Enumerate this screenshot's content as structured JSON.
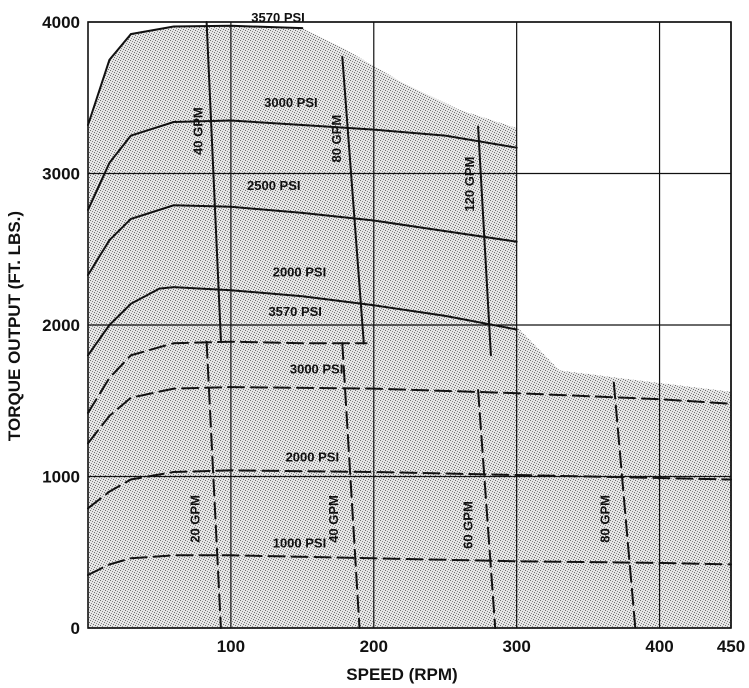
{
  "chart_data": {
    "type": "line",
    "title": "",
    "xlabel": "SPEED (RPM)",
    "ylabel": "TORQUE OUTPUT (FT. LBS.)",
    "xlim": [
      0,
      450
    ],
    "ylim": [
      0,
      4000
    ],
    "x_ticks": [
      "100",
      "200",
      "300",
      "400",
      "450"
    ],
    "y_ticks": [
      "0",
      "1000",
      "2000",
      "3000",
      "4000"
    ],
    "grid": true,
    "colors": {
      "line": "#111111",
      "fill": "#c9c9c9",
      "grid": "#111111"
    },
    "solid_series": [
      {
        "name": "3570 PSI",
        "label_pos": [
          133,
          4000
        ],
        "points": [
          [
            0,
            3320
          ],
          [
            15,
            3750
          ],
          [
            30,
            3920
          ],
          [
            60,
            3970
          ],
          [
            100,
            3975
          ],
          [
            150,
            3960
          ]
        ]
      },
      {
        "name": "3000 PSI",
        "label_pos": [
          142,
          3440
        ],
        "points": [
          [
            0,
            2760
          ],
          [
            15,
            3070
          ],
          [
            30,
            3250
          ],
          [
            60,
            3340
          ],
          [
            100,
            3350
          ],
          [
            150,
            3320
          ],
          [
            200,
            3290
          ],
          [
            250,
            3250
          ],
          [
            300,
            3170
          ]
        ]
      },
      {
        "name": "2500 PSI",
        "label_pos": [
          130,
          2890
        ],
        "points": [
          [
            0,
            2330
          ],
          [
            15,
            2560
          ],
          [
            30,
            2700
          ],
          [
            60,
            2790
          ],
          [
            100,
            2780
          ],
          [
            150,
            2740
          ],
          [
            200,
            2690
          ],
          [
            250,
            2620
          ],
          [
            300,
            2550
          ]
        ]
      },
      {
        "name": "2000 PSI",
        "label_pos": [
          148,
          2320
        ],
        "points": [
          [
            0,
            1800
          ],
          [
            15,
            2000
          ],
          [
            30,
            2140
          ],
          [
            50,
            2240
          ],
          [
            60,
            2250
          ],
          [
            100,
            2230
          ],
          [
            150,
            2190
          ],
          [
            200,
            2130
          ],
          [
            250,
            2060
          ],
          [
            300,
            1970
          ]
        ]
      }
    ],
    "solid_gpm": [
      {
        "name": "40 GPM",
        "label_pos": [
          80,
          3280
        ],
        "points": [
          [
            83,
            4000
          ],
          [
            93,
            1900
          ]
        ]
      },
      {
        "name": "80 GPM",
        "label_pos": [
          177,
          3230
        ],
        "points": [
          [
            178,
            3770
          ],
          [
            193,
            1880
          ]
        ]
      },
      {
        "name": "120 GPM",
        "label_pos": [
          270,
          2930
        ],
        "points": [
          [
            273,
            3310
          ],
          [
            282,
            1800
          ]
        ]
      }
    ],
    "dashed_series": [
      {
        "name": "3570 PSI",
        "label_pos": [
          145,
          2060
        ],
        "points": [
          [
            0,
            1420
          ],
          [
            15,
            1650
          ],
          [
            30,
            1800
          ],
          [
            60,
            1880
          ],
          [
            100,
            1890
          ],
          [
            150,
            1880
          ],
          [
            195,
            1880
          ]
        ]
      },
      {
        "name": "3000 PSI",
        "label_pos": [
          160,
          1680
        ],
        "points": [
          [
            0,
            1220
          ],
          [
            15,
            1400
          ],
          [
            30,
            1520
          ],
          [
            60,
            1580
          ],
          [
            100,
            1590
          ],
          [
            200,
            1580
          ],
          [
            300,
            1550
          ],
          [
            400,
            1510
          ],
          [
            450,
            1480
          ]
        ]
      },
      {
        "name": "2000 PSI",
        "label_pos": [
          157,
          1100
        ],
        "points": [
          [
            0,
            790
          ],
          [
            15,
            900
          ],
          [
            30,
            980
          ],
          [
            60,
            1030
          ],
          [
            100,
            1040
          ],
          [
            200,
            1030
          ],
          [
            300,
            1010
          ],
          [
            400,
            990
          ],
          [
            450,
            980
          ]
        ]
      },
      {
        "name": "1000 PSI",
        "label_pos": [
          148,
          530
        ],
        "points": [
          [
            0,
            350
          ],
          [
            15,
            420
          ],
          [
            30,
            460
          ],
          [
            60,
            480
          ],
          [
            100,
            480
          ],
          [
            200,
            460
          ],
          [
            300,
            440
          ],
          [
            400,
            430
          ],
          [
            450,
            420
          ]
        ]
      }
    ],
    "dashed_gpm": [
      {
        "name": "20 GPM",
        "label_pos": [
          78,
          720
        ],
        "points": [
          [
            83,
            1890
          ],
          [
            93,
            0
          ]
        ]
      },
      {
        "name": "40 GPM",
        "label_pos": [
          175,
          720
        ],
        "points": [
          [
            178,
            1880
          ],
          [
            190,
            0
          ]
        ]
      },
      {
        "name": "60 GPM",
        "label_pos": [
          269,
          680
        ],
        "points": [
          [
            273,
            1570
          ],
          [
            285,
            0
          ]
        ]
      },
      {
        "name": "80 GPM",
        "label_pos": [
          365,
          720
        ],
        "points": [
          [
            368,
            1620
          ],
          [
            383,
            0
          ]
        ]
      }
    ],
    "shaded_envelope": [
      [
        0,
        0
      ],
      [
        0,
        3320
      ],
      [
        15,
        3750
      ],
      [
        30,
        3920
      ],
      [
        60,
        3970
      ],
      [
        100,
        3975
      ],
      [
        150,
        3960
      ],
      [
        180,
        3820
      ],
      [
        220,
        3600
      ],
      [
        260,
        3420
      ],
      [
        300,
        3300
      ],
      [
        300,
        1990
      ],
      [
        330,
        1700
      ],
      [
        380,
        1640
      ],
      [
        450,
        1560
      ],
      [
        450,
        0
      ]
    ]
  }
}
